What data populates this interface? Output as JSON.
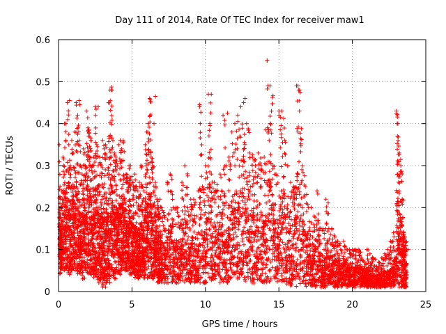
{
  "chart_data": {
    "type": "scatter",
    "title": "Day 111 of 2014, Rate Of TEC Index for receiver maw1",
    "xlabel": "GPS time / hours",
    "ylabel": "ROTI / TECUs",
    "xlim": [
      0,
      25
    ],
    "ylim": [
      0,
      0.6
    ],
    "xticks": [
      0,
      5,
      10,
      15,
      20,
      25
    ],
    "yticks": [
      0,
      0.1,
      0.2,
      0.3,
      0.4,
      0.5,
      0.6
    ],
    "xtick_labels": [
      "0",
      "5",
      "10",
      "15",
      "20",
      "25"
    ],
    "ytick_labels": [
      "0",
      "0.1",
      "0.2",
      "0.3",
      "0.4",
      "0.5",
      "0.6"
    ],
    "grid": true,
    "marker": "+",
    "color": "#ff0000",
    "series": [
      {
        "x": [
          0.05,
          0.1,
          0.15,
          0.2,
          0.3,
          0.4,
          0.5,
          0.6,
          0.7,
          0.8,
          0.9,
          1.0,
          1.1,
          1.2,
          1.3,
          1.4,
          1.5,
          1.6,
          1.7,
          1.8,
          1.9,
          2.0,
          2.1,
          2.2,
          2.3,
          2.4,
          2.5,
          2.6,
          2.7,
          2.8,
          2.9,
          3.0,
          3.1,
          3.2,
          3.3,
          3.4,
          3.5,
          3.6,
          3.7,
          3.8,
          3.9,
          4.0,
          4.1,
          4.2,
          4.3,
          4.4,
          4.5,
          4.6,
          4.7,
          4.8,
          4.9,
          5.0,
          5.1,
          5.2,
          5.3,
          5.4,
          5.5,
          5.6,
          5.7,
          5.8,
          5.9,
          6.0,
          6.1,
          6.2,
          6.3,
          6.4,
          6.5,
          6.6,
          6.7,
          6.8,
          6.9,
          7.0,
          7.2,
          7.4,
          7.6,
          7.8,
          8.0,
          8.2,
          8.4,
          8.6,
          8.8,
          9.0,
          9.2,
          9.4,
          9.6,
          9.8,
          10.0,
          10.2,
          10.4,
          10.6,
          10.8,
          11.0,
          11.2,
          11.4,
          11.6,
          11.8,
          12.0,
          12.2,
          12.4,
          12.6,
          12.8,
          13.0,
          13.2,
          13.4,
          13.6,
          13.8,
          14.0,
          14.2,
          14.4,
          14.6,
          14.8,
          15.0,
          15.2,
          15.4,
          15.6,
          15.8,
          16.0,
          16.2,
          16.4,
          16.6,
          16.8,
          17.0,
          17.2,
          17.4,
          17.6,
          17.8,
          18.0,
          18.2,
          18.4,
          18.6,
          18.8,
          19.0,
          19.2,
          19.4,
          19.6,
          19.8,
          20.0,
          20.2,
          20.4,
          20.6,
          20.8,
          21.0,
          21.2,
          21.4,
          21.6,
          21.8,
          22.0,
          22.2,
          22.4,
          22.6,
          22.8,
          23.0,
          23.1,
          23.2,
          23.3,
          23.4,
          23.5,
          23.6,
          23.7,
          23.8
        ],
        "y_max": [
          0.35,
          0.25,
          0.22,
          0.24,
          0.32,
          0.4,
          0.36,
          0.45,
          0.35,
          0.3,
          0.36,
          0.33,
          0.38,
          0.45,
          0.42,
          0.36,
          0.3,
          0.28,
          0.34,
          0.3,
          0.43,
          0.39,
          0.37,
          0.36,
          0.3,
          0.32,
          0.44,
          0.35,
          0.3,
          0.32,
          0.3,
          0.36,
          0.34,
          0.35,
          0.32,
          0.45,
          0.48,
          0.48,
          0.36,
          0.33,
          0.32,
          0.3,
          0.35,
          0.36,
          0.34,
          0.36,
          0.27,
          0.28,
          0.26,
          0.3,
          0.3,
          0.26,
          0.25,
          0.28,
          0.25,
          0.24,
          0.26,
          0.3,
          0.25,
          0.24,
          0.35,
          0.38,
          0.4,
          0.46,
          0.32,
          0.3,
          0.24,
          0.26,
          0.22,
          0.2,
          0.22,
          0.2,
          0.18,
          0.26,
          0.28,
          0.2,
          0.2,
          0.18,
          0.26,
          0.3,
          0.2,
          0.22,
          0.22,
          0.18,
          0.44,
          0.25,
          0.3,
          0.47,
          0.28,
          0.26,
          0.24,
          0.28,
          0.42,
          0.3,
          0.32,
          0.38,
          0.4,
          0.42,
          0.44,
          0.45,
          0.4,
          0.33,
          0.32,
          0.3,
          0.33,
          0.3,
          0.32,
          0.55,
          0.49,
          0.3,
          0.28,
          0.42,
          0.43,
          0.36,
          0.3,
          0.26,
          0.25,
          0.49,
          0.48,
          0.3,
          0.25,
          0.2,
          0.2,
          0.18,
          0.24,
          0.15,
          0.15,
          0.22,
          0.15,
          0.15,
          0.13,
          0.12,
          0.1,
          0.12,
          0.1,
          0.1,
          0.1,
          0.1,
          0.1,
          0.08,
          0.07,
          0.1,
          0.09,
          0.08,
          0.06,
          0.07,
          0.08,
          0.09,
          0.1,
          0.12,
          0.14,
          0.43,
          0.4,
          0.33,
          0.3,
          0.22,
          0.14,
          0.12,
          0.1,
          0.1
        ],
        "y_min": [
          0.04,
          0.04,
          0.05,
          0.05,
          0.05,
          0.05,
          0.05,
          0.04,
          0.04,
          0.05,
          0.05,
          0.05,
          0.05,
          0.05,
          0.04,
          0.04,
          0.04,
          0.03,
          0.03,
          0.04,
          0.04,
          0.04,
          0.04,
          0.04,
          0.04,
          0.03,
          0.03,
          0.02,
          0.02,
          0.02,
          0.01,
          0.01,
          0.01,
          0.02,
          0.02,
          0.02,
          0.03,
          0.03,
          0.03,
          0.03,
          0.04,
          0.04,
          0.04,
          0.05,
          0.05,
          0.05,
          0.05,
          0.05,
          0.05,
          0.04,
          0.04,
          0.04,
          0.04,
          0.03,
          0.03,
          0.03,
          0.03,
          0.03,
          0.03,
          0.03,
          0.03,
          0.03,
          0.03,
          0.03,
          0.03,
          0.03,
          0.03,
          0.03,
          0.02,
          0.02,
          0.02,
          0.02,
          0.02,
          0.02,
          0.02,
          0.02,
          0.02,
          0.02,
          0.02,
          0.02,
          0.02,
          0.02,
          0.02,
          0.02,
          0.02,
          0.02,
          0.02,
          0.02,
          0.02,
          0.02,
          0.02,
          0.02,
          0.02,
          0.02,
          0.03,
          0.03,
          0.03,
          0.03,
          0.02,
          0.02,
          0.02,
          0.02,
          0.02,
          0.02,
          0.02,
          0.02,
          0.02,
          0.02,
          0.02,
          0.02,
          0.02,
          0.02,
          0.02,
          0.01,
          0.01,
          0.01,
          0.01,
          0.01,
          0.01,
          0.01,
          0.01,
          0.01,
          0.01,
          0.01,
          0.01,
          0.01,
          0.01,
          0.01,
          0.01,
          0.01,
          0.01,
          0.01,
          0.01,
          0.01,
          0.01,
          0.01,
          0.01,
          0.01,
          0.01,
          0.01,
          0.01,
          0.01,
          0.01,
          0.01,
          0.01,
          0.01,
          0.01,
          0.01,
          0.01,
          0.01,
          0.01,
          0.01,
          0.01,
          0.01,
          0.01,
          0.01,
          0.01,
          0.01
        ],
        "note": "envelope of dense scatter; points sampled within [y_min, y_max] per x-bin"
      }
    ],
    "outliers": [
      {
        "x": 14.2,
        "y": 0.55
      },
      {
        "x": 14.25,
        "y": 0.49
      },
      {
        "x": 3.6,
        "y": 0.487
      },
      {
        "x": 3.65,
        "y": 0.48
      },
      {
        "x": 16.3,
        "y": 0.49
      },
      {
        "x": 16.35,
        "y": 0.48
      },
      {
        "x": 6.6,
        "y": 0.465
      },
      {
        "x": 10.4,
        "y": 0.47
      },
      {
        "x": 12.7,
        "y": 0.46
      },
      {
        "x": 0.75,
        "y": 0.455
      },
      {
        "x": 1.4,
        "y": 0.455
      },
      {
        "x": 1.45,
        "y": 0.445
      },
      {
        "x": 9.6,
        "y": 0.445
      },
      {
        "x": 2.7,
        "y": 0.44
      },
      {
        "x": 23.0,
        "y": 0.423
      },
      {
        "x": 11.5,
        "y": 0.425
      },
      {
        "x": 15.0,
        "y": 0.43
      },
      {
        "x": 15.1,
        "y": 0.415
      },
      {
        "x": 16.4,
        "y": 0.43
      },
      {
        "x": 0.5,
        "y": 0.4
      },
      {
        "x": 23.05,
        "y": 0.4
      },
      {
        "x": 10.3,
        "y": 0.4
      },
      {
        "x": 6.5,
        "y": 0.4
      },
      {
        "x": 14.1,
        "y": 0.385
      },
      {
        "x": 16.3,
        "y": 0.38
      },
      {
        "x": 8.6,
        "y": 0.3
      },
      {
        "x": 9.5,
        "y": 0.24
      }
    ]
  }
}
